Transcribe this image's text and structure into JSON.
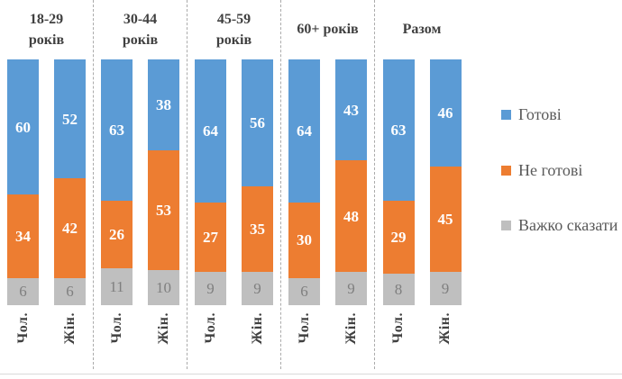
{
  "chart_data": {
    "type": "bar",
    "subtype": "100-percent-stacked-column",
    "orientation": "vertical",
    "value_unit": "percent",
    "grid": false,
    "legend_position": "right",
    "series": [
      {
        "name": "Готові",
        "color": "#5B9BD5",
        "value_label_color": "#FFFFFF",
        "value_label_bold": true
      },
      {
        "name": "Не готові",
        "color": "#ED7D31",
        "value_label_color": "#FFFFFF",
        "value_label_bold": true
      },
      {
        "name": "Важко сказати",
        "color": "#BFBFBF",
        "value_label_color": "#7F7F7F",
        "value_label_bold": false
      }
    ],
    "groups": [
      {
        "label": "18-29 років",
        "bars": [
          {
            "label": "Чол.",
            "values": [
              60,
              34,
              6
            ]
          },
          {
            "label": "Жін.",
            "values": [
              52,
              42,
              6
            ]
          }
        ]
      },
      {
        "label": "30-44 років",
        "bars": [
          {
            "label": "Чол.",
            "values": [
              63,
              26,
              11
            ]
          },
          {
            "label": "Жін.",
            "values": [
              38,
              53,
              10
            ]
          }
        ]
      },
      {
        "label": "45-59 років",
        "bars": [
          {
            "label": "Чол.",
            "values": [
              64,
              27,
              9
            ]
          },
          {
            "label": "Жін.",
            "values": [
              56,
              35,
              9
            ]
          }
        ]
      },
      {
        "label": "60+ років",
        "bars": [
          {
            "label": "Чол.",
            "values": [
              64,
              30,
              6
            ]
          },
          {
            "label": "Жін.",
            "values": [
              43,
              48,
              9
            ]
          }
        ]
      },
      {
        "label": "Разом",
        "bars": [
          {
            "label": "Чол.",
            "values": [
              63,
              29,
              8
            ]
          },
          {
            "label": "Жін.",
            "values": [
              46,
              45,
              9
            ]
          }
        ]
      }
    ]
  },
  "colors": {
    "ready": "#5B9BD5",
    "not_ready": "#ED7D31",
    "hard_to_say": "#BFBFBF",
    "segment_label_white": "#FFFFFF",
    "segment_label_gray": "#7F7F7F",
    "header_text": "#404040",
    "axis_label_text": "#404040",
    "legend_text": "#595959",
    "group_separator": "#ABABAB",
    "baseline": "#D9D9D9"
  }
}
